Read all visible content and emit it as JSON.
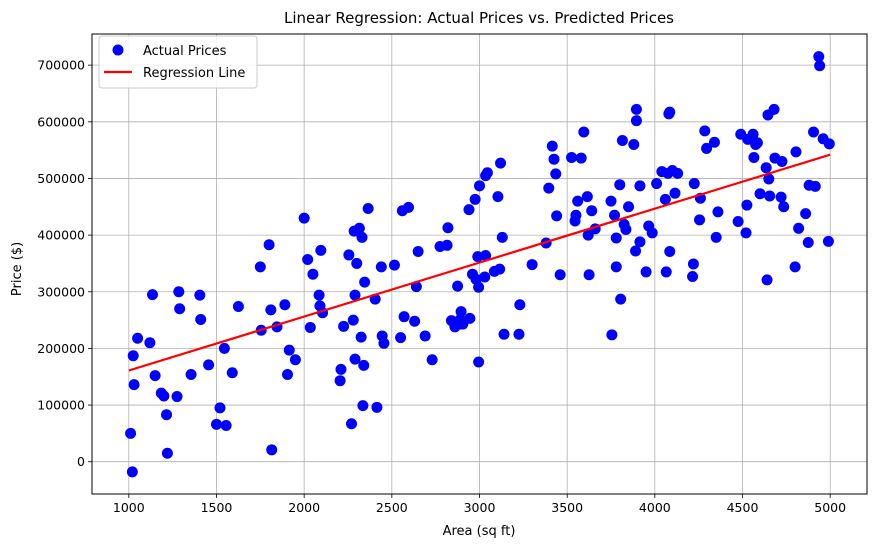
{
  "chart_data": {
    "type": "scatter",
    "title": "Linear Regression: Actual Prices vs. Predicted Prices",
    "xlabel": "Area (sq ft)",
    "ylabel": "Price ($)",
    "xlim": [
      790,
      5210
    ],
    "ylim": [
      -57000,
      755000
    ],
    "xticks": [
      1000,
      1500,
      2000,
      2500,
      3000,
      3500,
      4000,
      4500,
      5000
    ],
    "yticks": [
      0,
      100000,
      200000,
      300000,
      400000,
      500000,
      600000,
      700000
    ],
    "grid": true,
    "legend_position": "top-left",
    "colors": {
      "scatter": "#0000ff",
      "line": "#ff0000",
      "grid": "#b0b0b0",
      "frame": "#000000"
    },
    "series": [
      {
        "name": "Actual Prices",
        "kind": "scatter",
        "points": [
          [
            1010,
            50000
          ],
          [
            1020,
            -18000
          ],
          [
            1025,
            187000
          ],
          [
            1030,
            136000
          ],
          [
            1050,
            218000
          ],
          [
            1120,
            210000
          ],
          [
            1135,
            295000
          ],
          [
            1150,
            152000
          ],
          [
            1185,
            121000
          ],
          [
            1200,
            116000
          ],
          [
            1215,
            83000
          ],
          [
            1220,
            15000
          ],
          [
            1275,
            115000
          ],
          [
            1285,
            300000
          ],
          [
            1290,
            270000
          ],
          [
            1355,
            154000
          ],
          [
            1405,
            294000
          ],
          [
            1410,
            251000
          ],
          [
            1455,
            171000
          ],
          [
            1500,
            66000
          ],
          [
            1520,
            95000
          ],
          [
            1545,
            200000
          ],
          [
            1555,
            64000
          ],
          [
            1590,
            157000
          ],
          [
            1625,
            274000
          ],
          [
            1750,
            344000
          ],
          [
            1755,
            232000
          ],
          [
            1800,
            383000
          ],
          [
            1810,
            268000
          ],
          [
            1815,
            21000
          ],
          [
            1845,
            238000
          ],
          [
            1890,
            277000
          ],
          [
            1905,
            154000
          ],
          [
            1915,
            197000
          ],
          [
            1950,
            180000
          ],
          [
            2000,
            430000
          ],
          [
            2020,
            357000
          ],
          [
            2035,
            237000
          ],
          [
            2050,
            331000
          ],
          [
            2085,
            294000
          ],
          [
            2090,
            275000
          ],
          [
            2095,
            373000
          ],
          [
            2105,
            263000
          ],
          [
            2205,
            143000
          ],
          [
            2210,
            163000
          ],
          [
            2225,
            239000
          ],
          [
            2255,
            365000
          ],
          [
            2270,
            67000
          ],
          [
            2280,
            250000
          ],
          [
            2290,
            181000
          ],
          [
            2285,
            407000
          ],
          [
            2290,
            294000
          ],
          [
            2300,
            350000
          ],
          [
            2315,
            412000
          ],
          [
            2325,
            220000
          ],
          [
            2330,
            396000
          ],
          [
            2335,
            99000
          ],
          [
            2340,
            170000
          ],
          [
            2345,
            317000
          ],
          [
            2365,
            447000
          ],
          [
            2405,
            287000
          ],
          [
            2415,
            96000
          ],
          [
            2440,
            344000
          ],
          [
            2445,
            222000
          ],
          [
            2455,
            209000
          ],
          [
            2515,
            347000
          ],
          [
            2550,
            219000
          ],
          [
            2560,
            443000
          ],
          [
            2570,
            256000
          ],
          [
            2595,
            449000
          ],
          [
            2630,
            248000
          ],
          [
            2640,
            309000
          ],
          [
            2650,
            371000
          ],
          [
            2690,
            222000
          ],
          [
            2730,
            180000
          ],
          [
            2775,
            380000
          ],
          [
            2815,
            382000
          ],
          [
            2820,
            413000
          ],
          [
            2840,
            249000
          ],
          [
            2860,
            238000
          ],
          [
            2875,
            310000
          ],
          [
            2885,
            243000
          ],
          [
            2890,
            251000
          ],
          [
            2895,
            265000
          ],
          [
            2905,
            243000
          ],
          [
            2940,
            445000
          ],
          [
            2945,
            253000
          ],
          [
            2960,
            331000
          ],
          [
            2975,
            463000
          ],
          [
            2980,
            322000
          ],
          [
            2990,
            362000
          ],
          [
            2995,
            308000
          ],
          [
            2995,
            176000
          ],
          [
            3000,
            487000
          ],
          [
            3030,
            326000
          ],
          [
            3035,
            364000
          ],
          [
            3035,
            505000
          ],
          [
            3045,
            510000
          ],
          [
            3085,
            336000
          ],
          [
            3105,
            468000
          ],
          [
            3115,
            340000
          ],
          [
            3120,
            527000
          ],
          [
            3130,
            396000
          ],
          [
            3140,
            225000
          ],
          [
            3225,
            225000
          ],
          [
            3230,
            277000
          ],
          [
            3300,
            348000
          ],
          [
            3380,
            386000
          ],
          [
            3395,
            483000
          ],
          [
            3415,
            557000
          ],
          [
            3425,
            534000
          ],
          [
            3435,
            508000
          ],
          [
            3440,
            434000
          ],
          [
            3460,
            330000
          ],
          [
            3525,
            537000
          ],
          [
            3545,
            425000
          ],
          [
            3550,
            435000
          ],
          [
            3560,
            460000
          ],
          [
            3580,
            536000
          ],
          [
            3595,
            582000
          ],
          [
            3615,
            468000
          ],
          [
            3620,
            400000
          ],
          [
            3625,
            330000
          ],
          [
            3640,
            443000
          ],
          [
            3660,
            411000
          ],
          [
            3750,
            460000
          ],
          [
            3755,
            224000
          ],
          [
            3770,
            435000
          ],
          [
            3780,
            395000
          ],
          [
            3780,
            344000
          ],
          [
            3800,
            489000
          ],
          [
            3805,
            287000
          ],
          [
            3815,
            567000
          ],
          [
            3825,
            419000
          ],
          [
            3835,
            410000
          ],
          [
            3850,
            450000
          ],
          [
            3880,
            560000
          ],
          [
            3890,
            372000
          ],
          [
            3895,
            622000
          ],
          [
            3895,
            602000
          ],
          [
            3915,
            388000
          ],
          [
            3915,
            487000
          ],
          [
            3950,
            335000
          ],
          [
            3965,
            416000
          ],
          [
            3985,
            404000
          ],
          [
            4010,
            491000
          ],
          [
            4040,
            512000
          ],
          [
            4060,
            463000
          ],
          [
            4065,
            335000
          ],
          [
            4075,
            509000
          ],
          [
            4080,
            614000
          ],
          [
            4085,
            617000
          ],
          [
            4085,
            371000
          ],
          [
            4100,
            514000
          ],
          [
            4115,
            474000
          ],
          [
            4130,
            509000
          ],
          [
            4215,
            327000
          ],
          [
            4220,
            349000
          ],
          [
            4225,
            491000
          ],
          [
            4255,
            427000
          ],
          [
            4260,
            465000
          ],
          [
            4285,
            584000
          ],
          [
            4295,
            553000
          ],
          [
            4340,
            564000
          ],
          [
            4350,
            396000
          ],
          [
            4360,
            441000
          ],
          [
            4475,
            424000
          ],
          [
            4490,
            578000
          ],
          [
            4520,
            404000
          ],
          [
            4525,
            453000
          ],
          [
            4530,
            569000
          ],
          [
            4560,
            578000
          ],
          [
            4565,
            537000
          ],
          [
            4575,
            560000
          ],
          [
            4585,
            563000
          ],
          [
            4600,
            473000
          ],
          [
            4635,
            519000
          ],
          [
            4640,
            321000
          ],
          [
            4645,
            612000
          ],
          [
            4650,
            499000
          ],
          [
            4655,
            469000
          ],
          [
            4680,
            622000
          ],
          [
            4685,
            536000
          ],
          [
            4720,
            467000
          ],
          [
            4725,
            530000
          ],
          [
            4735,
            450000
          ],
          [
            4800,
            344000
          ],
          [
            4805,
            547000
          ],
          [
            4820,
            412000
          ],
          [
            4860,
            438000
          ],
          [
            4875,
            387000
          ],
          [
            4880,
            488000
          ],
          [
            4905,
            582000
          ],
          [
            4915,
            486000
          ],
          [
            4935,
            715000
          ],
          [
            4940,
            699000
          ],
          [
            4960,
            570000
          ],
          [
            4990,
            389000
          ],
          [
            4995,
            561000
          ]
        ]
      },
      {
        "name": "Regression Line",
        "kind": "line",
        "x": [
          1000,
          5000
        ],
        "y": [
          161000,
          542000
        ]
      }
    ]
  }
}
